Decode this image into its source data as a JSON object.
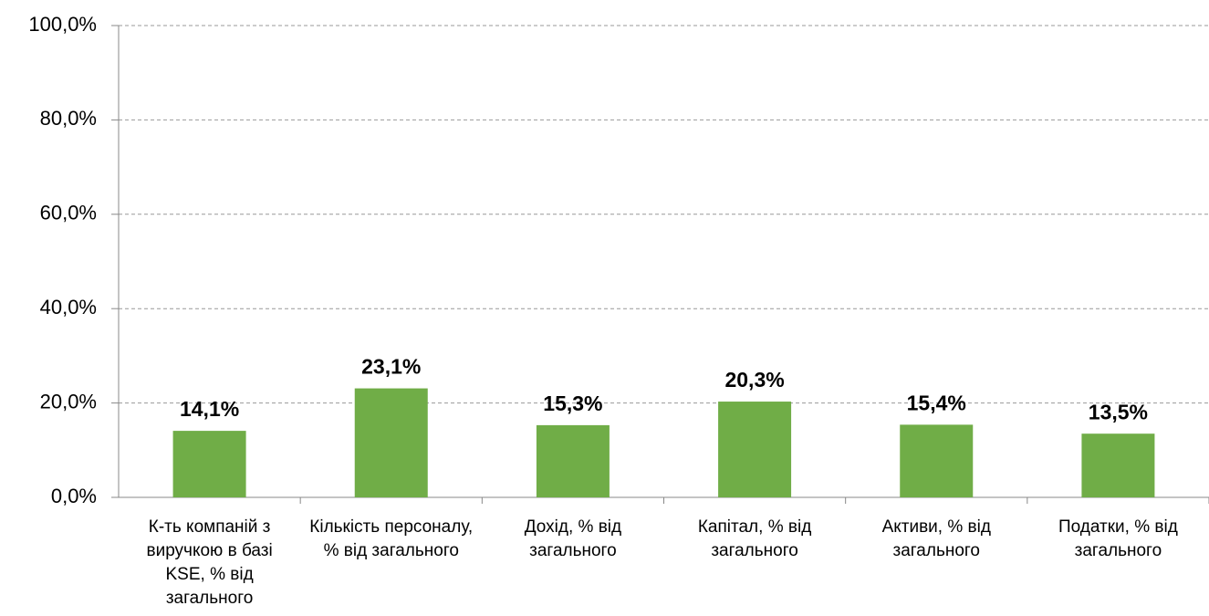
{
  "chart_data": {
    "type": "bar",
    "categories": [
      "К-ть компаній з виручкою в базі KSE, % від загального",
      "Кількість персоналу, % від загального",
      "Дохід, % від загального",
      "Капітал, % від загального",
      "Активи, % від загального",
      "Податки, % від загального"
    ],
    "values": [
      14.1,
      23.1,
      15.3,
      20.3,
      15.4,
      13.5
    ],
    "value_labels": [
      "14,1%",
      "23,1%",
      "15,3%",
      "20,3%",
      "15,4%",
      "13,5%"
    ],
    "color": "#70ad47",
    "ylim": [
      0,
      100
    ],
    "yticks": [
      {
        "value": 0,
        "label": "0,0%"
      },
      {
        "value": 20,
        "label": "20,0%"
      },
      {
        "value": 40,
        "label": "40,0%"
      },
      {
        "value": 60,
        "label": "60,0%"
      },
      {
        "value": 80,
        "label": "80,0%"
      },
      {
        "value": 100,
        "label": "100,0%"
      }
    ],
    "grid": true
  }
}
